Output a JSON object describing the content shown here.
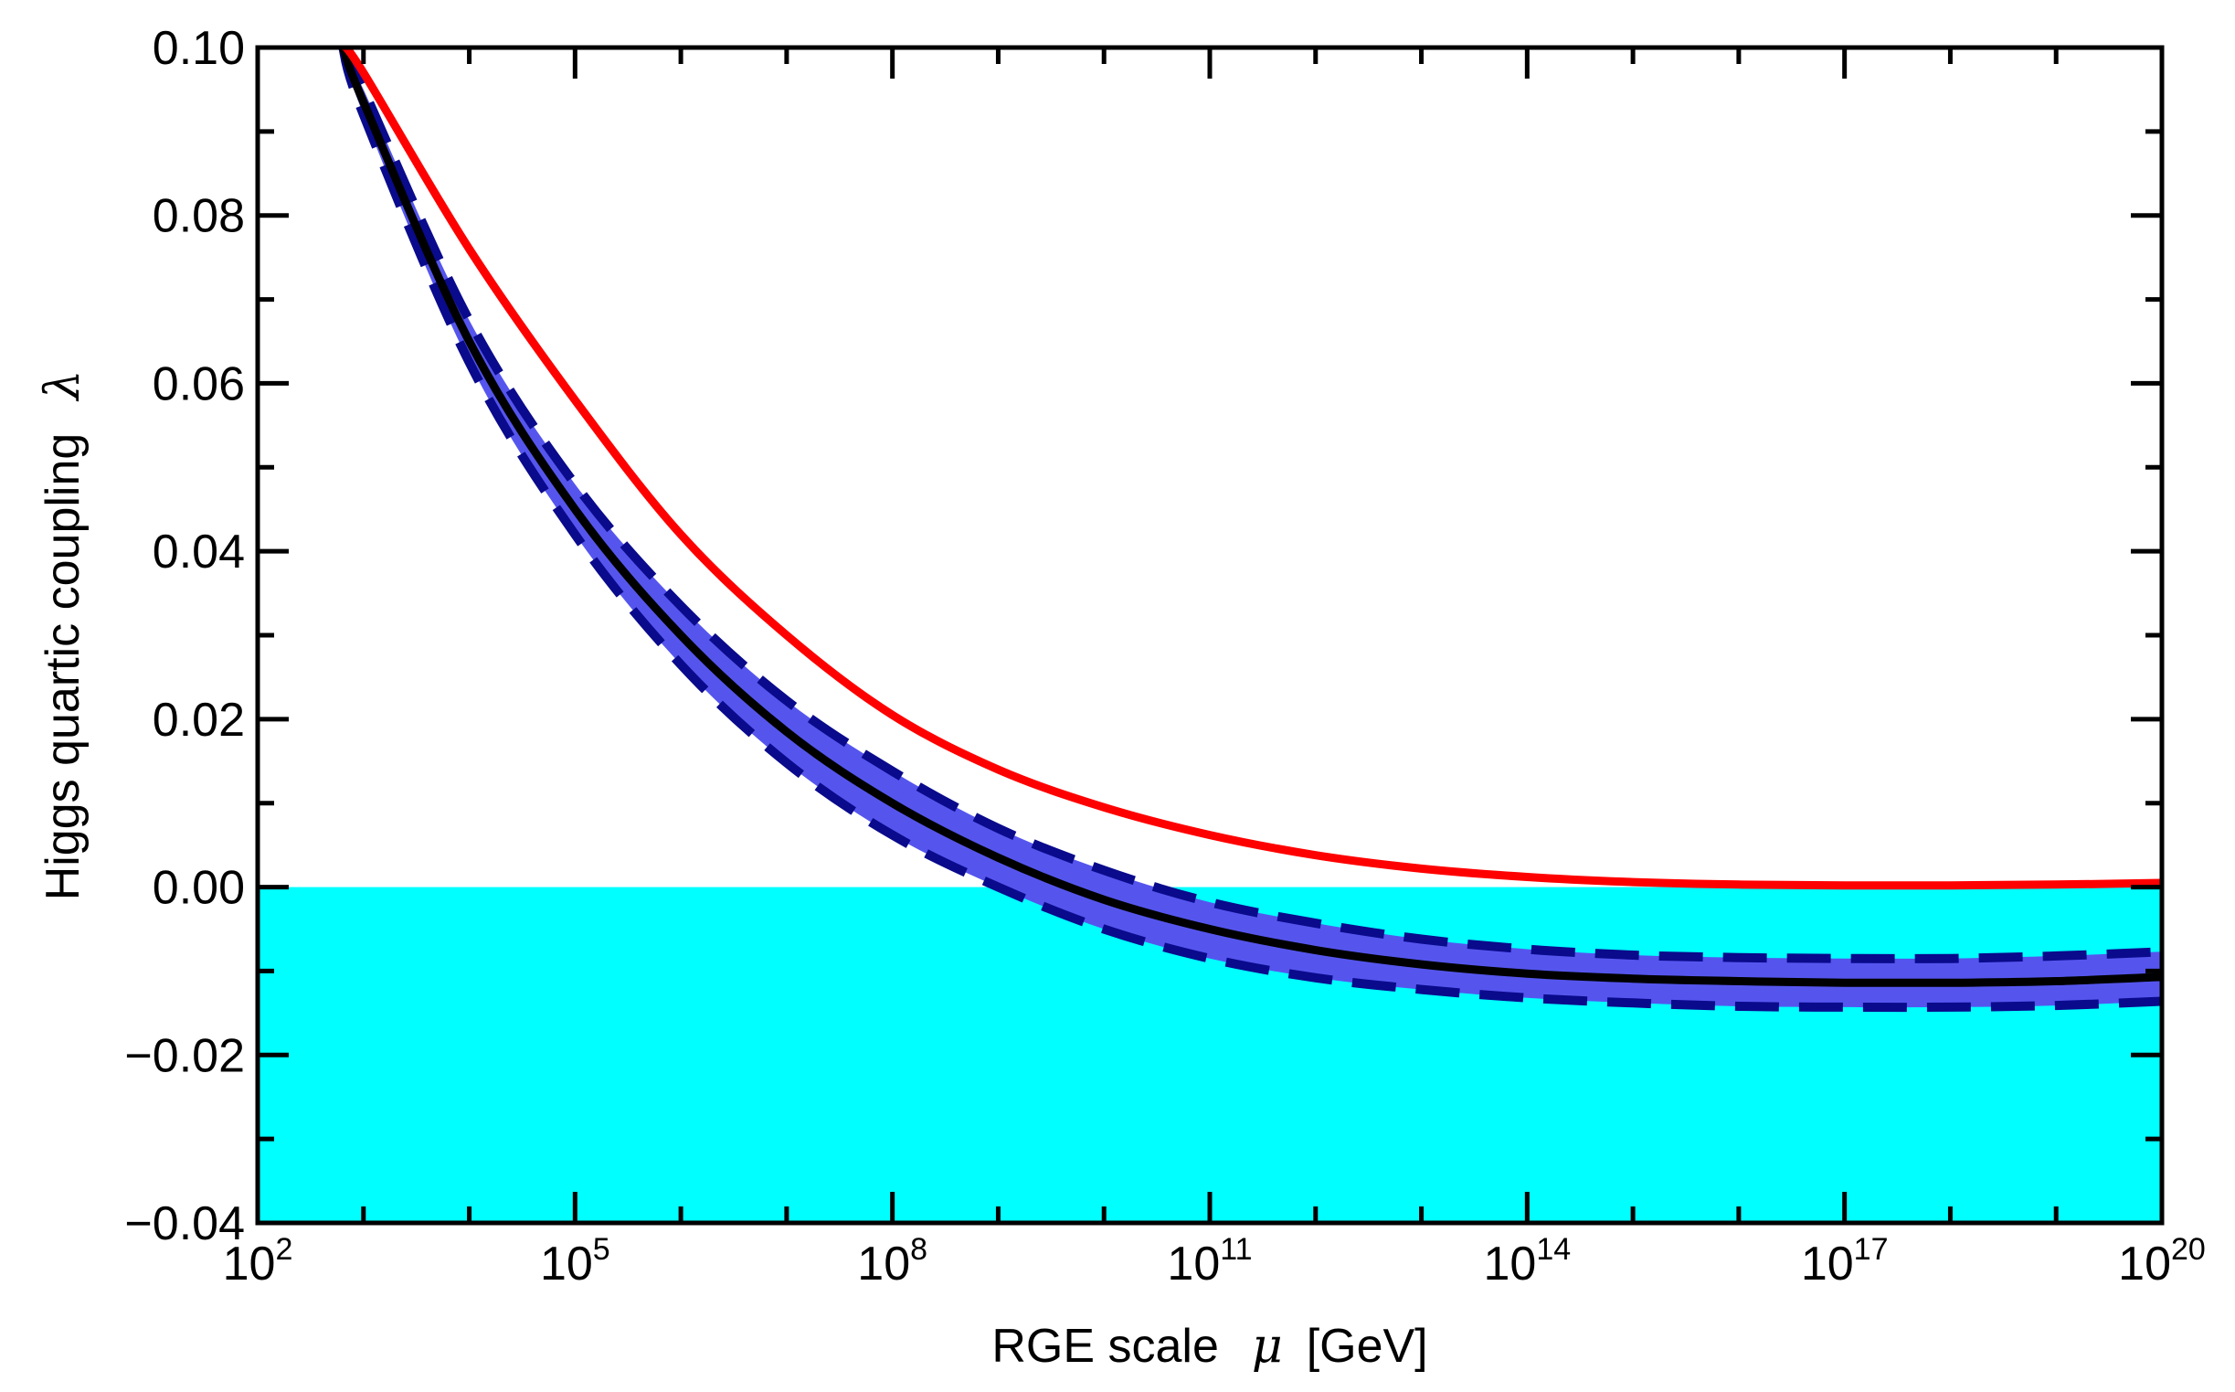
{
  "chart_data": {
    "type": "line",
    "xscale": "log10",
    "xlabel": "RGE scale",
    "xlabel_symbol": "μ",
    "xlabel_unit": "[GeV]",
    "ylabel": "Higgs quartic coupling",
    "ylabel_symbol": "λ",
    "xlim_exponent": [
      2,
      20
    ],
    "ylim": [
      -0.04,
      0.1
    ],
    "x_major_ticks": [
      {
        "base": "10",
        "exp": "2",
        "value": 2
      },
      {
        "base": "10",
        "exp": "5",
        "value": 5
      },
      {
        "base": "10",
        "exp": "8",
        "value": 8
      },
      {
        "base": "10",
        "exp": "11",
        "value": 11
      },
      {
        "base": "10",
        "exp": "14",
        "value": 14
      },
      {
        "base": "10",
        "exp": "17",
        "value": 17
      },
      {
        "base": "10",
        "exp": "20",
        "value": 20
      }
    ],
    "y_major_ticks": [
      {
        "label": "−0.04",
        "value": -0.04
      },
      {
        "label": "−0.02",
        "value": -0.02
      },
      {
        "label": "0.00",
        "value": 0.0
      },
      {
        "label": "0.02",
        "value": 0.02
      },
      {
        "label": "0.04",
        "value": 0.04
      },
      {
        "label": "0.06",
        "value": 0.06
      },
      {
        "label": "0.08",
        "value": 0.08
      },
      {
        "label": "0.10",
        "value": 0.1
      }
    ],
    "instability_region": {
      "y_from": -0.04,
      "y_to": 0.0,
      "color": "#00ffff"
    },
    "series": [
      {
        "name": "central",
        "color": "#000000",
        "style": "solid",
        "x": [
          2.8,
          3,
          4,
          5,
          6,
          7,
          8,
          9,
          10,
          11,
          12,
          13,
          14,
          15,
          16,
          17,
          18,
          19,
          20
        ],
        "values": [
          0.1003,
          0.0935,
          0.065,
          0.045,
          0.03,
          0.0185,
          0.01,
          0.0035,
          -0.0015,
          -0.005,
          -0.0075,
          -0.0092,
          -0.0103,
          -0.0109,
          -0.0112,
          -0.0114,
          -0.0114,
          -0.0112,
          -0.0107
        ]
      },
      {
        "name": "upper",
        "color": "#0a0a8c",
        "style": "dashed",
        "x": [
          2.8,
          3,
          4,
          5,
          6,
          7,
          8,
          9,
          10,
          11,
          12,
          13,
          14,
          15,
          16,
          17,
          18,
          19,
          20
        ],
        "values": [
          0.1003,
          0.095,
          0.0675,
          0.048,
          0.0335,
          0.0222,
          0.0138,
          0.007,
          0.002,
          -0.0018,
          -0.0043,
          -0.0062,
          -0.0074,
          -0.0081,
          -0.0084,
          -0.0085,
          -0.0085,
          -0.0082,
          -0.0077
        ]
      },
      {
        "name": "lower",
        "color": "#0a0a8c",
        "style": "dashed",
        "x": [
          2.8,
          3,
          4,
          5,
          6,
          7,
          8,
          9,
          10,
          11,
          12,
          13,
          14,
          15,
          16,
          17,
          18,
          19,
          20
        ],
        "values": [
          0.1003,
          0.092,
          0.0625,
          0.042,
          0.0265,
          0.0148,
          0.0062,
          0.0,
          -0.005,
          -0.0085,
          -0.0108,
          -0.0122,
          -0.0132,
          -0.0138,
          -0.0142,
          -0.0143,
          -0.0143,
          -0.0141,
          -0.0136
        ]
      },
      {
        "name": "red",
        "color": "#ff0000",
        "style": "solid",
        "x": [
          2.8,
          3,
          4,
          5,
          6,
          7,
          8,
          9,
          10,
          11,
          12,
          13,
          14,
          15,
          16,
          17,
          18,
          19,
          20
        ],
        "values": [
          0.1003,
          0.097,
          0.076,
          0.058,
          0.042,
          0.03,
          0.0205,
          0.014,
          0.0095,
          0.0062,
          0.0038,
          0.0022,
          0.0012,
          0.0006,
          0.0003,
          0.0002,
          0.0002,
          0.0003,
          0.0005
        ]
      }
    ],
    "band": {
      "between": [
        "upper",
        "lower"
      ],
      "color": "#5555ee"
    }
  }
}
